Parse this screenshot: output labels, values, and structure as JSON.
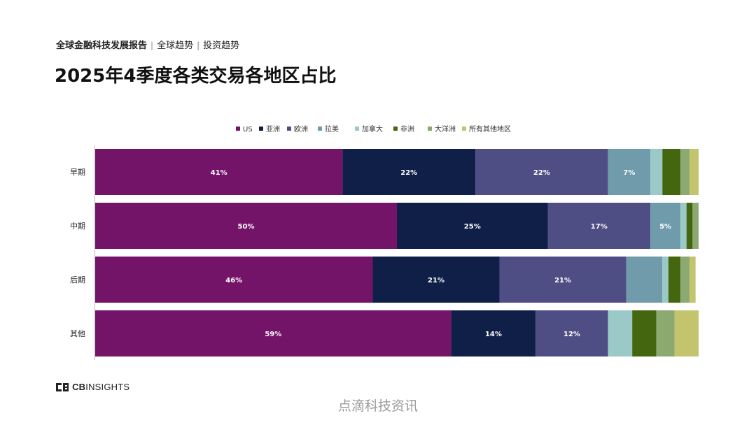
{
  "header": {
    "report": "全球金融科技发展报告",
    "section1": "全球趋势",
    "section2": "投资趋势",
    "separator": "|"
  },
  "title": "2025年4季度各类交易各地区占比",
  "colors": {
    "US": "#731468",
    "亚洲": "#0f1f47",
    "欧洲": "#4f4e84",
    "拉美": "#6f9bab",
    "加拿大": "#9bc9c8",
    "非洲": "#43660e",
    "大洋洲": "#8ba970",
    "所有其他地区": "#c3c46d"
  },
  "chart_data": {
    "type": "bar",
    "orientation": "horizontal",
    "stacked": true,
    "categories": [
      "早期",
      "中期",
      "后期",
      "其他"
    ],
    "series": [
      {
        "name": "US",
        "values": [
          41,
          50,
          46,
          59
        ],
        "labels": [
          "41%",
          "50%",
          "46%",
          "59%"
        ]
      },
      {
        "name": "亚洲",
        "values": [
          22,
          25,
          21,
          14
        ],
        "labels": [
          "22%",
          "25%",
          "21%",
          "14%"
        ]
      },
      {
        "name": "欧洲",
        "values": [
          22,
          17,
          21,
          12
        ],
        "labels": [
          "22%",
          "17%",
          "21%",
          "12%"
        ]
      },
      {
        "name": "拉美",
        "values": [
          7,
          5,
          6,
          0
        ],
        "labels": [
          "7%",
          "5%",
          "",
          ""
        ]
      },
      {
        "name": "加拿大",
        "values": [
          2,
          1,
          1,
          4
        ],
        "labels": [
          "",
          "",
          "",
          ""
        ]
      },
      {
        "name": "非洲",
        "values": [
          3,
          1,
          2,
          4
        ],
        "labels": [
          "",
          "",
          "",
          ""
        ]
      },
      {
        "name": "大洋洲",
        "values": [
          1.5,
          1,
          1.5,
          3
        ],
        "labels": [
          "",
          "",
          "",
          ""
        ]
      },
      {
        "name": "所有其他地区",
        "values": [
          1.5,
          0,
          1,
          4
        ],
        "labels": [
          "",
          "",
          "",
          ""
        ]
      }
    ],
    "xlim": [
      0,
      100
    ],
    "legend": "top",
    "grid": false
  },
  "footer": {
    "logo_text_bold": "CB",
    "logo_text": "INSIGHTS",
    "watermark": "点滴科技资讯"
  }
}
